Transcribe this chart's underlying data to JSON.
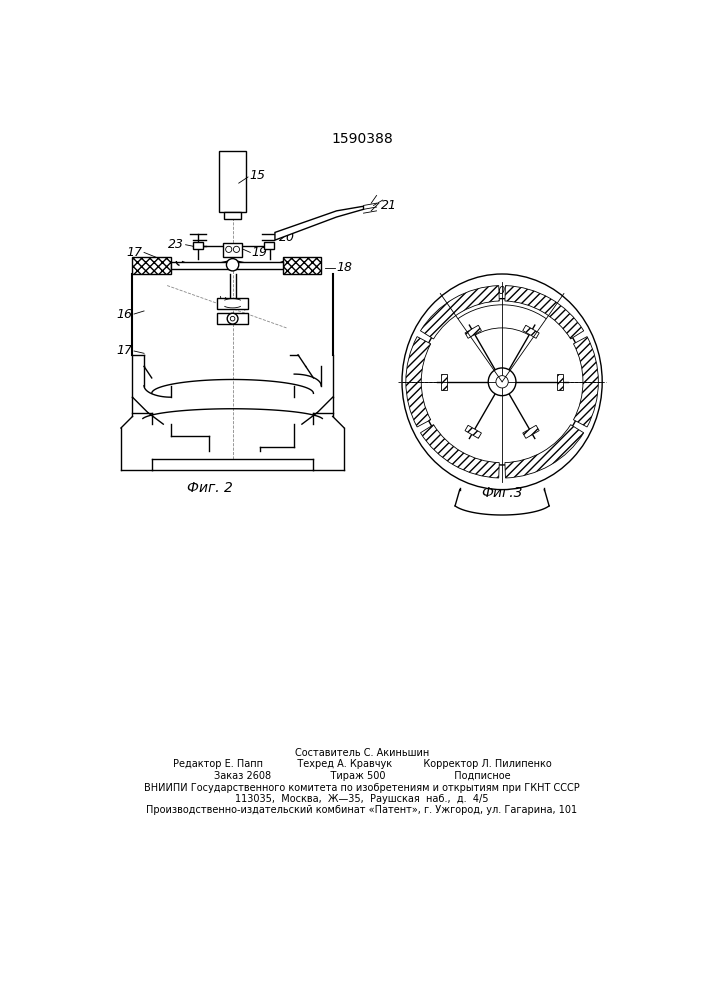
{
  "title": "1590388",
  "title_fontsize": 10,
  "fig2_label": "Фиг. 2",
  "fig3_label": "Фиг.3",
  "footer_lines": [
    "Составитель С. Акиньшин",
    "Редактор Е. Папп           Техред А. Кравчук          Корректор Л. Пилипенко",
    "Заказ 2608                   Тираж 500                      Подписное",
    "ВНИИПИ Государственного комитета по изобретениям и открытиям при ГКНТ СССР",
    "113035,  Москва,  Ж—35,  Раушская  наб.,  д.  4/5",
    "Производственно-издательский комбинат «Патент», г. Ужгород, ул. Гагарина, 101"
  ],
  "bg_color": "#ffffff",
  "line_color": "#000000"
}
